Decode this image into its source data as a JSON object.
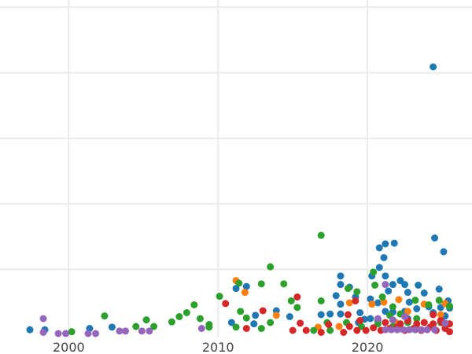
{
  "chart_data": {
    "type": "scatter",
    "title": "",
    "xlabel": "",
    "ylabel": "",
    "xlim": [
      1995.4,
      2027.0
    ],
    "ylim": [
      -0.29,
      5.11
    ],
    "x_ticks": [
      2000,
      2010,
      2020
    ],
    "x_tick_labels": [
      "2000",
      "2010",
      "2020"
    ],
    "y_gridlines": [
      1,
      2,
      3,
      4,
      5
    ],
    "grid": true,
    "legend": "none",
    "series": [
      {
        "color": "#1f77b4",
        "points": [
          [
            1997.4,
            0.08
          ],
          [
            1998.4,
            0.08
          ],
          [
            2001.4,
            0.1
          ],
          [
            2002.9,
            0.12
          ],
          [
            2010.9,
            0.19
          ],
          [
            2011.2,
            0.71
          ],
          [
            2011.9,
            0.74
          ],
          [
            2012.5,
            0.3
          ],
          [
            2012.4,
            0.17
          ],
          [
            2013.9,
            0.37
          ],
          [
            2014.8,
            0.28
          ],
          [
            2016.9,
            0.31
          ],
          [
            2017.5,
            0.32
          ],
          [
            2018.2,
            0.9
          ],
          [
            2018.2,
            0.77
          ],
          [
            2017.9,
            0.6
          ],
          [
            2018.2,
            0.47
          ],
          [
            2018.2,
            0.32
          ],
          [
            2018.8,
            0.73
          ],
          [
            2019.2,
            0.58
          ],
          [
            2019.5,
            0.34
          ],
          [
            2019.8,
            0.24
          ],
          [
            2020.3,
            0.9
          ],
          [
            2020.2,
            0.55
          ],
          [
            2020.7,
            0.49
          ],
          [
            2020.8,
            1.03
          ],
          [
            2020.8,
            1.33
          ],
          [
            2021.1,
            1.18
          ],
          [
            2021.2,
            1.39
          ],
          [
            2021.2,
            0.9
          ],
          [
            2021.8,
            1.4
          ],
          [
            2024.4,
            4.09
          ],
          [
            2024.5,
            1.48
          ],
          [
            2025.1,
            1.27
          ],
          [
            2021.4,
            0.67
          ],
          [
            2021.7,
            0.77
          ],
          [
            2022.2,
            0.83
          ],
          [
            2022.5,
            0.77
          ],
          [
            2022.7,
            0.65
          ],
          [
            2022.8,
            0.5
          ],
          [
            2023.4,
            0.76
          ],
          [
            2023.8,
            0.64
          ],
          [
            2024.8,
            0.7
          ],
          [
            2025.4,
            0.52
          ],
          [
            2025.5,
            0.41
          ],
          [
            2024.9,
            0.42
          ],
          [
            2024.1,
            0.43
          ],
          [
            2023.3,
            0.4
          ],
          [
            2022.5,
            0.36
          ],
          [
            2021.7,
            0.35
          ],
          [
            2021.2,
            0.36
          ],
          [
            2020.2,
            0.25
          ],
          [
            2024.4,
            0.34
          ],
          [
            2025.2,
            0.29
          ],
          [
            2020.7,
            0.22
          ],
          [
            2019.4,
            0.19
          ],
          [
            2022.7,
            0.25
          ]
        ]
      },
      {
        "color": "#ff7f0e",
        "points": [
          [
            2011.2,
            0.83
          ],
          [
            2011.8,
            0.65
          ],
          [
            2013.9,
            0.3
          ],
          [
            2018.1,
            0.13
          ],
          [
            2018.8,
            0.49
          ],
          [
            2020.3,
            0.47
          ],
          [
            2021.1,
            0.5
          ],
          [
            2022.1,
            0.54
          ],
          [
            2022.7,
            0.36
          ],
          [
            2023.8,
            0.47
          ],
          [
            2025.2,
            0.48
          ],
          [
            2024.9,
            0.31
          ],
          [
            2021.9,
            0.19
          ],
          [
            2023.3,
            0.1
          ],
          [
            2016.7,
            0.12
          ]
        ]
      },
      {
        "color": "#2ca02c",
        "points": [
          [
            2000.2,
            0.05
          ],
          [
            2002.4,
            0.29
          ],
          [
            2004.5,
            0.13
          ],
          [
            2005.2,
            0.23
          ],
          [
            2005.7,
            0.13
          ],
          [
            2006.9,
            0.2
          ],
          [
            2007.4,
            0.28
          ],
          [
            2007.9,
            0.34
          ],
          [
            2008.4,
            0.46
          ],
          [
            2008.8,
            0.25
          ],
          [
            2009.4,
            0.16
          ],
          [
            2009.4,
            0.12
          ],
          [
            2010.1,
            0.59
          ],
          [
            2011.4,
            0.79
          ],
          [
            2011.2,
            0.12
          ],
          [
            2011.5,
            0.36
          ],
          [
            2011.9,
            0.26
          ],
          [
            2012.9,
            0.78
          ],
          [
            2013.5,
            1.04
          ],
          [
            2013.5,
            0.19
          ],
          [
            2012.9,
            0.1
          ],
          [
            2014.4,
            0.78
          ],
          [
            2014.9,
            0.52
          ],
          [
            2015.3,
            0.42
          ],
          [
            2016.9,
            1.52
          ],
          [
            2016.9,
            0.52
          ],
          [
            2016.4,
            0.07
          ],
          [
            2018.7,
            0.71
          ],
          [
            2019.3,
            0.66
          ],
          [
            2020.4,
            0.96
          ],
          [
            2020.5,
            0.76
          ],
          [
            2021.0,
            0.58
          ],
          [
            2021.5,
            0.3
          ],
          [
            2021.7,
            0.43
          ],
          [
            2022.2,
            0.32
          ],
          [
            2023.2,
            0.53
          ],
          [
            2024.1,
            0.46
          ],
          [
            2024.8,
            0.53
          ],
          [
            2025.5,
            0.44
          ],
          [
            2018.6,
            0.19
          ],
          [
            2019.6,
            0.13
          ],
          [
            2020.7,
            0.17
          ],
          [
            2022.7,
            0.19
          ],
          [
            2023.8,
            0.19
          ],
          [
            2024.9,
            0.19
          ],
          [
            2017.3,
            0.19
          ],
          [
            2017.5,
            0.07
          ],
          [
            2021.7,
            0.13
          ],
          [
            2023.3,
            0.25
          ]
        ]
      },
      {
        "color": "#d62728",
        "points": [
          [
            2010.5,
            0.48
          ],
          [
            2011.9,
            0.1
          ],
          [
            2013.0,
            0.37
          ],
          [
            2015.3,
            0.58
          ],
          [
            2015.5,
            0.18
          ],
          [
            2015.0,
            0.07
          ],
          [
            2015.9,
            0.07
          ],
          [
            2016.9,
            0.04
          ],
          [
            2017.4,
            0.16
          ],
          [
            2018.4,
            0.04
          ],
          [
            2018.7,
            0.31
          ],
          [
            2019.2,
            0.52
          ],
          [
            2019.3,
            0.07
          ],
          [
            2019.9,
            0.07
          ],
          [
            2020.4,
            0.11
          ],
          [
            2020.9,
            0.07
          ],
          [
            2021.5,
            0.1
          ],
          [
            2022.0,
            0.12
          ],
          [
            2022.5,
            0.07
          ],
          [
            2023.1,
            0.1
          ],
          [
            2023.6,
            0.07
          ],
          [
            2024.2,
            0.12
          ],
          [
            2024.6,
            0.07
          ],
          [
            2025.2,
            0.1
          ],
          [
            2025.5,
            0.05
          ],
          [
            2024.9,
            0.22
          ],
          [
            2023.8,
            0.19
          ],
          [
            2022.7,
            0.22
          ],
          [
            2024.4,
            0.31
          ],
          [
            2025.0,
            0.19
          ],
          [
            2018.8,
            0.13
          ],
          [
            2019.5,
            0.22
          ],
          [
            2021.2,
            0.19
          ],
          [
            2022.2,
            0.17
          ],
          [
            2023.3,
            0.17
          ],
          [
            2024.4,
            0.17
          ],
          [
            2025.5,
            0.17
          ]
        ]
      },
      {
        "color": "#9467bd",
        "points": [
          [
            1998.3,
            0.25
          ],
          [
            1998.3,
            0.04
          ],
          [
            1999.3,
            0.02
          ],
          [
            1999.8,
            0.02
          ],
          [
            2001.3,
            0.02
          ],
          [
            2001.8,
            0.02
          ],
          [
            2003.4,
            0.06
          ],
          [
            2003.8,
            0.06
          ],
          [
            2004.9,
            0.06
          ],
          [
            2005.4,
            0.06
          ],
          [
            2008.9,
            0.1
          ],
          [
            2021.2,
            0.77
          ],
          [
            2020.7,
            0.25
          ],
          [
            2021.7,
            0.23
          ],
          [
            2022.5,
            0.28
          ],
          [
            2025.2,
            0.18
          ],
          [
            2021.2,
            0.08
          ],
          [
            2021.6,
            0.08
          ],
          [
            2022.0,
            0.08
          ],
          [
            2022.4,
            0.08
          ],
          [
            2022.8,
            0.08
          ],
          [
            2023.2,
            0.08
          ],
          [
            2023.6,
            0.08
          ],
          [
            2024.0,
            0.08
          ],
          [
            2024.5,
            0.08
          ]
        ]
      }
    ]
  }
}
